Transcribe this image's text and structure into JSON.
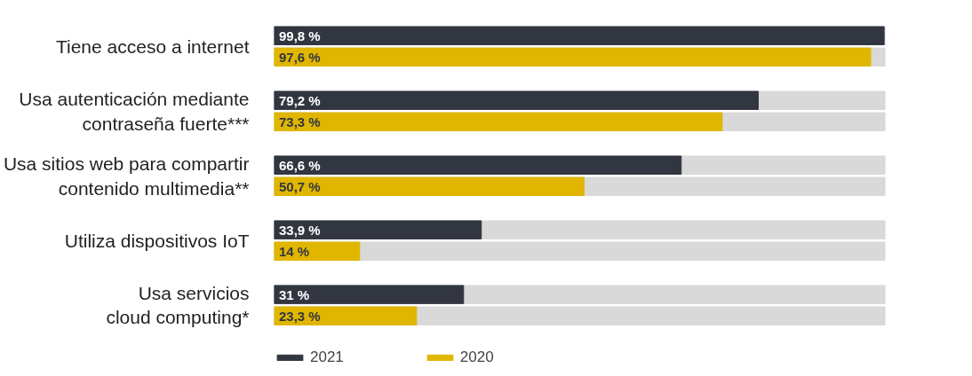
{
  "chart_data": {
    "type": "bar",
    "orientation": "horizontal",
    "categories": [
      "Tiene acceso a internet",
      "Usa autenticación mediante contraseña fuerte***",
      "Usa sitios web para compartir contenido multimedia**",
      "Utiliza dispositivos IoT",
      "Usa servicios cloud computing*"
    ],
    "series": [
      {
        "name": "2021",
        "color": "#323640",
        "values": [
          99.8,
          79.2,
          66.6,
          33.9,
          31
        ],
        "value_labels": [
          "99,8 %",
          "79,2 %",
          "66,6 %",
          "33,9 %",
          "31 %"
        ]
      },
      {
        "name": "2020",
        "color": "#e0b600",
        "values": [
          97.6,
          73.3,
          50.7,
          14,
          23.3
        ],
        "value_labels": [
          "97,6 %",
          "73,3 %",
          "50,7 %",
          "14 %",
          "23,3 %"
        ]
      }
    ],
    "xlim": [
      0,
      100
    ],
    "tick_labels": "y",
    "grid": false,
    "legend": "bottom"
  }
}
